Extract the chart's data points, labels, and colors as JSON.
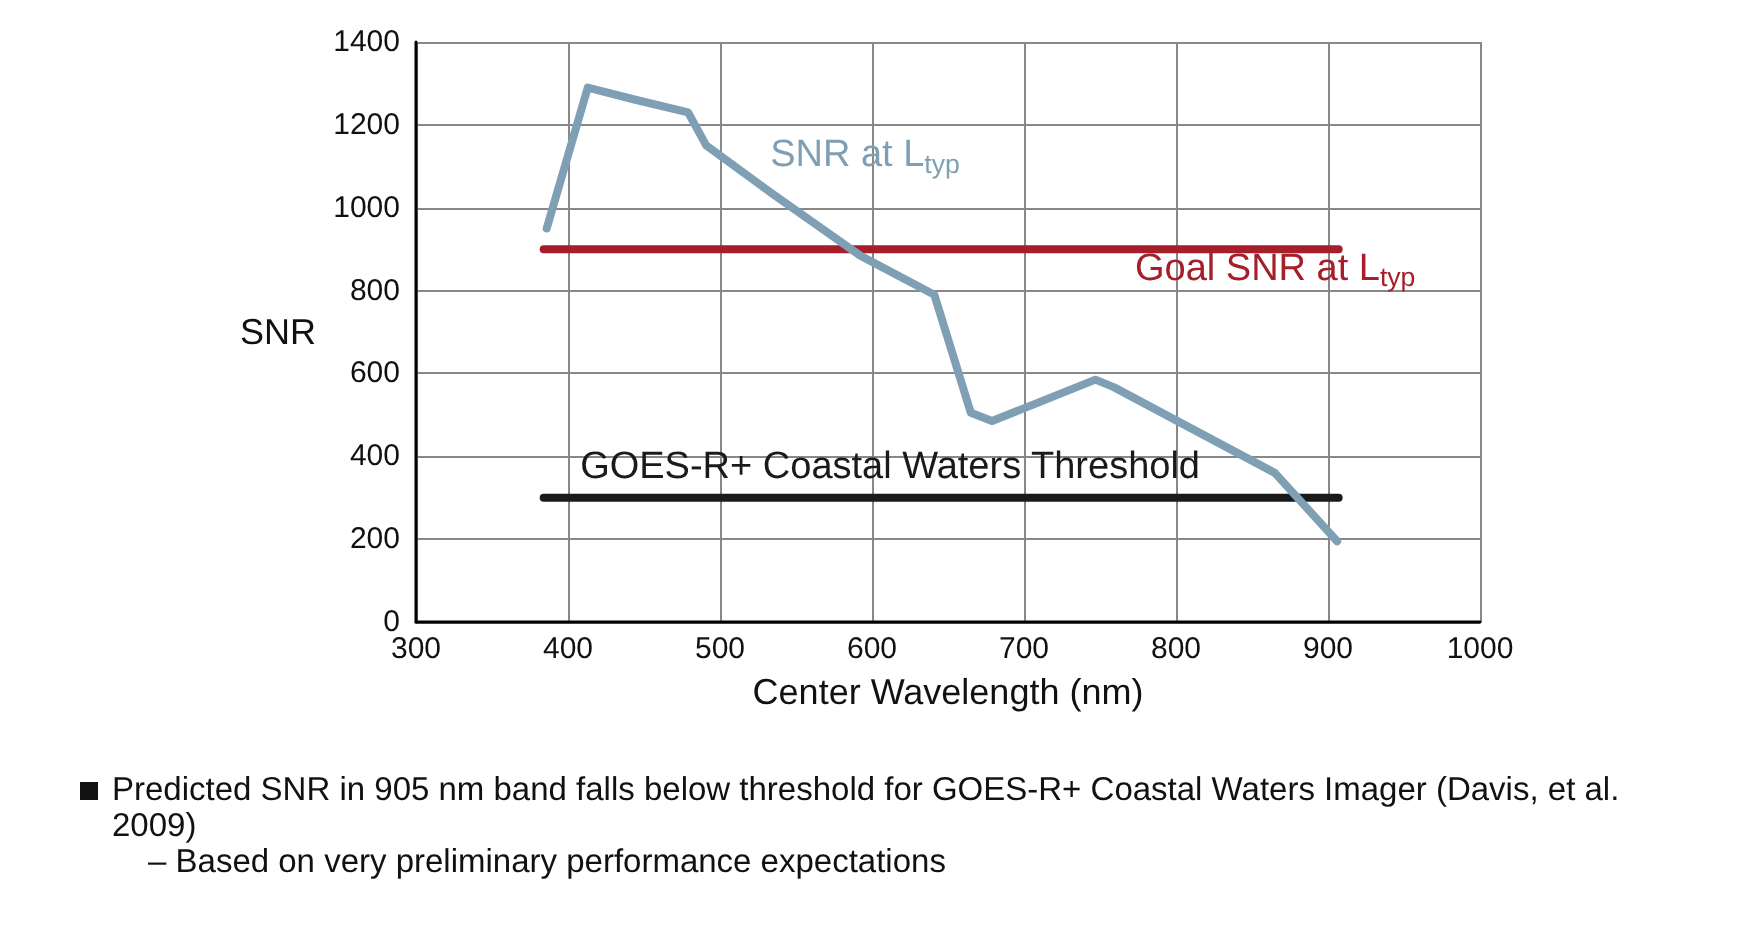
{
  "chart_data": {
    "type": "line",
    "xlabel": "Center Wavelength (nm)",
    "ylabel": "SNR",
    "xlim": [
      300,
      1000
    ],
    "xticks": [
      300,
      400,
      500,
      600,
      700,
      800,
      900,
      1000
    ],
    "ylim": [
      0,
      1400
    ],
    "yticks": [
      0,
      200,
      400,
      600,
      800,
      1000,
      1200,
      1400
    ],
    "grid": true,
    "marker": "none",
    "line_style": "solid",
    "series": [
      {
        "name": "SNR at L$_{typ}$",
        "color": "#7f9fb5",
        "x": [
          386,
          413,
          445,
          479,
          491,
          534,
          592,
          641,
          665,
          679,
          747,
          759,
          865,
          906
        ],
        "values": [
          950,
          1290,
          1260,
          1230,
          1150,
          1035,
          885,
          790,
          505,
          485,
          585,
          567,
          360,
          195
        ]
      },
      {
        "name": "Goal SNR at L$_{typ}$",
        "color": "#a51e2a",
        "x": [
          384,
          907
        ],
        "values": [
          900,
          900
        ]
      },
      {
        "name": "GOES-R+ Coastal Waters Threshold",
        "color": "#1a1a1a",
        "x": [
          384,
          907
        ],
        "values": [
          300,
          300
        ]
      }
    ],
    "annotations": [
      "Predicted SNR in 905 nm band falls below threshold for GOES-R+ Coastal Waters Imager (Davis, et al. 2009)",
      "– Based on very preliminary performance expectations"
    ]
  }
}
